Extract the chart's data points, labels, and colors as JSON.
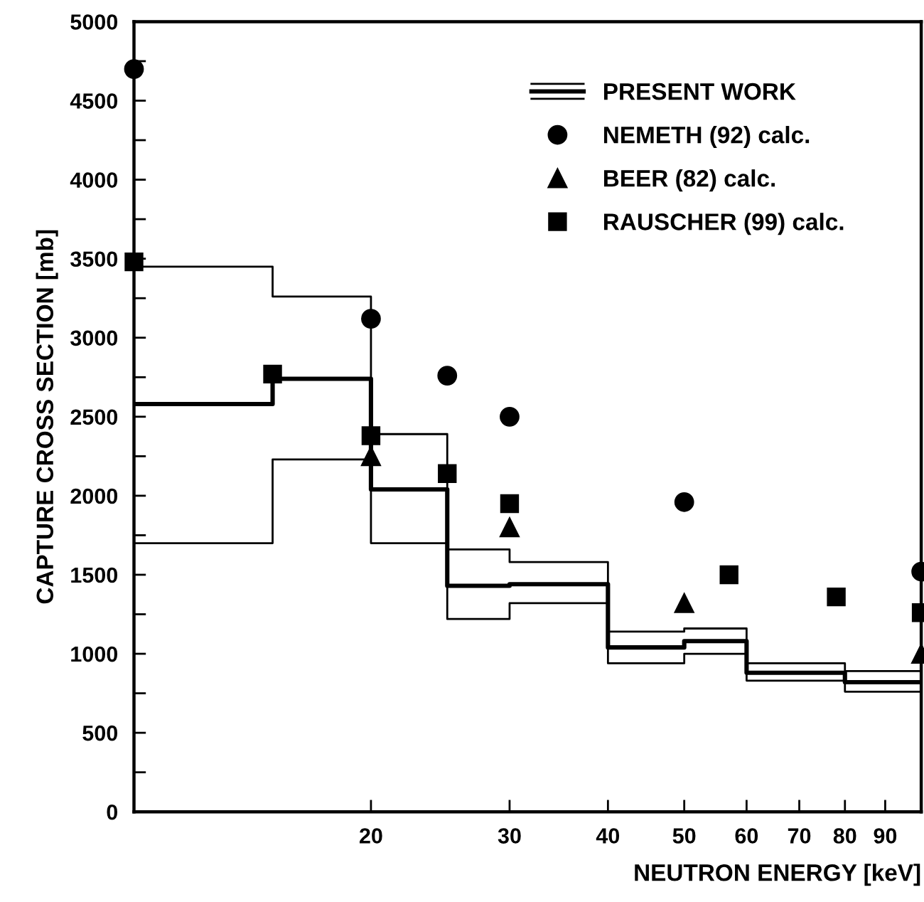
{
  "chart_data": {
    "type": "step",
    "xlabel": "NEUTRON ENERGY [keV]",
    "ylabel": "CAPTURE CROSS SECTION [mb]",
    "log": "x",
    "xlim": [
      10,
      100
    ],
    "xticks": [
      20,
      30,
      40,
      50,
      60,
      70,
      80,
      90
    ],
    "ylim": [
      0,
      5000
    ],
    "yticks": [
      0,
      {
        "value": 250,
        "label": null
      },
      500,
      {
        "value": 750,
        "label": null
      },
      1000,
      {
        "value": 1250,
        "label": null
      },
      1500,
      {
        "value": 1750,
        "label": null
      },
      2000,
      {
        "value": 2250,
        "label": null
      },
      2500,
      {
        "value": 2750,
        "label": null
      },
      3000,
      {
        "value": 3250,
        "label": null
      },
      3500,
      {
        "value": 3750,
        "label": null
      },
      4000,
      {
        "value": 4250,
        "label": null
      },
      4500,
      {
        "value": 4750,
        "label": null
      },
      5000
    ],
    "grid": false,
    "legend": "top right",
    "series": [
      {
        "color": "#000000",
        "marker": "none",
        "line_style": "solid",
        "x": [
          10,
          15,
          20,
          25,
          30,
          40,
          50,
          60,
          80,
          100
        ],
        "values": [
          3450,
          3260,
          2390,
          1660,
          1580,
          1140,
          1160,
          940,
          890,
          890
        ]
      },
      {
        "name": "PRESENT WORK",
        "color": "#000000",
        "marker": "none",
        "line_style": "solid",
        "x": [
          10,
          15,
          20,
          25,
          30,
          40,
          50,
          60,
          80,
          100
        ],
        "values": [
          2580,
          2740,
          2040,
          1430,
          1440,
          1040,
          1080,
          880,
          820,
          820
        ]
      },
      {
        "color": "#000000",
        "marker": "none",
        "line_style": "solid",
        "x": [
          10,
          15,
          20,
          25,
          30,
          40,
          50,
          60,
          80,
          100
        ],
        "values": [
          1700,
          2230,
          1700,
          1220,
          1320,
          940,
          1000,
          830,
          760,
          760
        ]
      },
      {
        "name": "NEMETH (92) calc.",
        "type": "scatter",
        "color": "#000000",
        "marker": "circle",
        "x": [
          10,
          20,
          25,
          30,
          50,
          100
        ],
        "values": [
          4700,
          3120,
          2760,
          2500,
          1960,
          1520
        ]
      },
      {
        "name": "BEER (82) calc.",
        "type": "scatter",
        "color": "#000000",
        "marker": "triangle",
        "x": [
          20,
          30,
          50,
          100
        ],
        "values": [
          2250,
          1800,
          1320,
          1000
        ]
      },
      {
        "name": "RAUSCHER (99) calc.",
        "type": "scatter",
        "color": "#000000",
        "marker": "square",
        "x": [
          10,
          15,
          20,
          25,
          30,
          57,
          78,
          100
        ],
        "values": [
          3480,
          2770,
          2380,
          2140,
          1950,
          1500,
          1360,
          1260
        ]
      }
    ]
  }
}
